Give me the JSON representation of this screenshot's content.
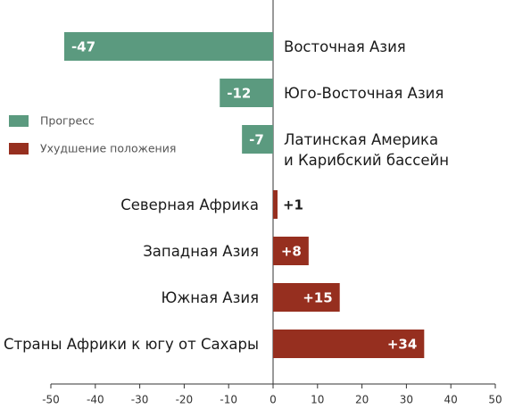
{
  "chart_data": {
    "type": "bar",
    "orientation": "horizontal",
    "categories": [
      "Восточная Азия",
      "Юго-Восточная Азия",
      "Латинская Америка\nи Карибский бассейн",
      "Северная Африка",
      "Западная Азия",
      "Южная Азия",
      "Страны Африки к югу от Сахары"
    ],
    "series": [
      {
        "name": "Прогресс",
        "color": "#5b9a7f",
        "values": [
          -47,
          -12,
          -7,
          null,
          null,
          null,
          null
        ],
        "value_labels": [
          "-47",
          "-12",
          "-7",
          null,
          null,
          null,
          null
        ]
      },
      {
        "name": "Ухудшение положения",
        "color": "#962f1f",
        "values": [
          null,
          null,
          null,
          1,
          8,
          15,
          34
        ],
        "value_labels": [
          null,
          null,
          null,
          "+1",
          "+8",
          "+15",
          "+34"
        ]
      }
    ],
    "xlim": [
      -50,
      50
    ],
    "xticks": [
      -50,
      -40,
      -30,
      -20,
      -10,
      0,
      10,
      20,
      30,
      40,
      50
    ],
    "legend": "left"
  }
}
